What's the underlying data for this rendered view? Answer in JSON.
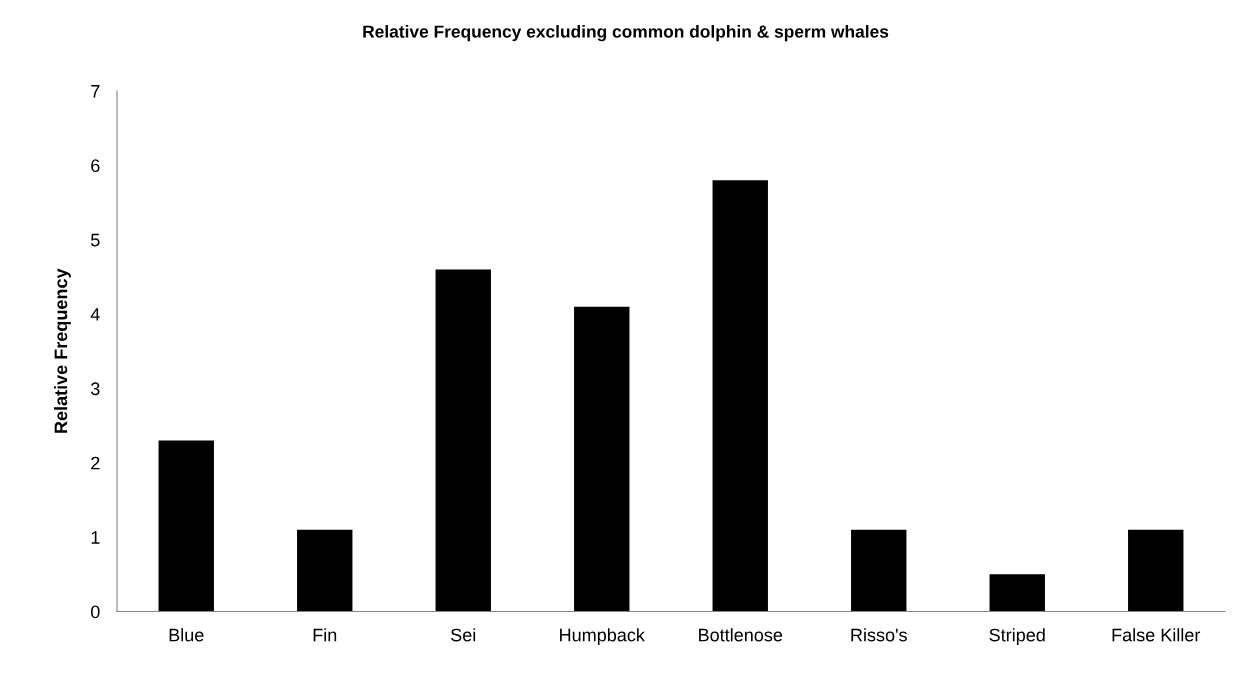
{
  "chart_data": {
    "type": "bar",
    "title": "Relative Frequency excluding common dolphin & sperm whales",
    "ylabel": "Relative Frequency",
    "categories": [
      "Blue",
      "Fin",
      "Sei",
      "Humpback",
      "Bottlenose",
      "Risso's",
      "Striped",
      "False Killer"
    ],
    "values": [
      2.3,
      1.1,
      4.6,
      4.1,
      5.8,
      1.1,
      0.5,
      1.1
    ],
    "color": "#000000",
    "ylim": [
      0,
      7
    ],
    "yticks": [
      0,
      1,
      2,
      3,
      4,
      5,
      6,
      7
    ],
    "grid": false,
    "legend": false
  }
}
